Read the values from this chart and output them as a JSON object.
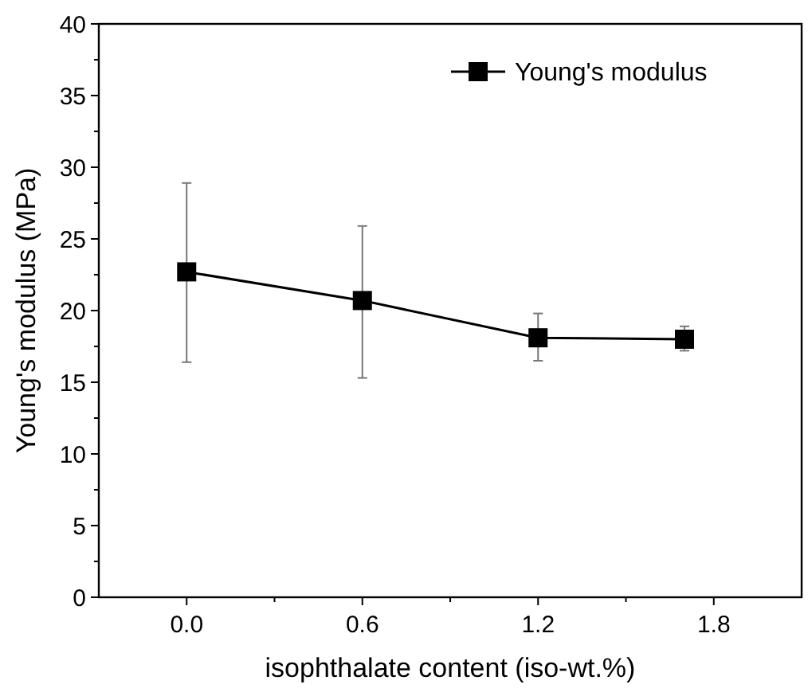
{
  "chart_data": {
    "type": "line",
    "xlabel": "isophthalate content (iso-wt.%)",
    "ylabel": "Young's modulus (MPa)",
    "x": [
      0.0,
      0.6,
      1.2,
      1.7
    ],
    "series": [
      {
        "name": "Young's modulus",
        "color": "#000000",
        "values": [
          22.7,
          20.7,
          18.1,
          18.0
        ],
        "errors": [
          [
            16.4,
            28.9
          ],
          [
            15.3,
            25.9
          ],
          [
            16.5,
            19.8
          ],
          [
            17.2,
            18.9
          ]
        ]
      }
    ],
    "xlim": [
      -0.3,
      2.1
    ],
    "xticks": [
      {
        "value": 0,
        "label": "0.0"
      },
      {
        "value": 0.3,
        "label": null
      },
      {
        "value": 0.6,
        "label": "0.6"
      },
      {
        "value": 0.9,
        "label": null
      },
      {
        "value": 1.2,
        "label": "1.2"
      },
      {
        "value": 1.5,
        "label": null
      },
      {
        "value": 1.8,
        "label": "1.8"
      }
    ],
    "ylim": [
      0,
      40
    ],
    "yticks": [
      0,
      {
        "value": 2.5,
        "label": null
      },
      5,
      {
        "value": 7.5,
        "label": null
      },
      10,
      {
        "value": 12.5,
        "label": null
      },
      15,
      {
        "value": 17.5,
        "label": null
      },
      20,
      {
        "value": 22.5,
        "label": null
      },
      25,
      {
        "value": 27.5,
        "label": null
      },
      30,
      {
        "value": 32.5,
        "label": null
      },
      35,
      {
        "value": 37.5,
        "label": null
      },
      40
    ],
    "legend": "top right",
    "marker": "square",
    "line_style": "solid",
    "grid": false
  }
}
